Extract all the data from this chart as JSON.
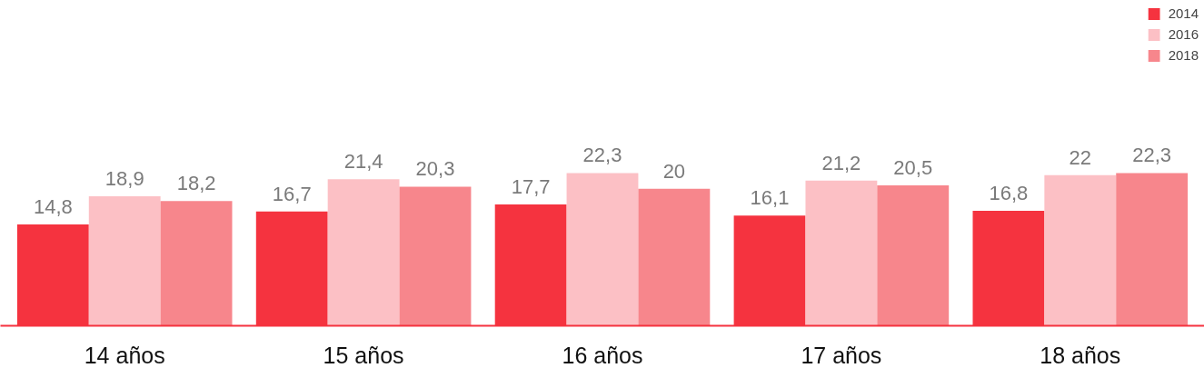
{
  "chart_data": {
    "type": "bar",
    "categories": [
      "14 años",
      "15 años",
      "16 años",
      "17 años",
      "18 años"
    ],
    "series": [
      {
        "name": "2014",
        "color": "#f5333f",
        "values": [
          14.8,
          16.7,
          17.7,
          16.1,
          16.8
        ],
        "value_labels": [
          "14,8",
          "16,7",
          "17,7",
          "16,1",
          "16,8"
        ]
      },
      {
        "name": "2016",
        "color": "#fcc0c5",
        "values": [
          18.9,
          21.4,
          22.3,
          21.2,
          22
        ],
        "value_labels": [
          "18,9",
          "21,4",
          "22,3",
          "21,2",
          "22"
        ]
      },
      {
        "name": "2018",
        "color": "#f7868c",
        "values": [
          18.2,
          20.3,
          20,
          20.5,
          22.3
        ],
        "value_labels": [
          "18,2",
          "20,3",
          "20",
          "20,5",
          "22,3"
        ]
      }
    ],
    "legend": "top right",
    "grid": false
  }
}
